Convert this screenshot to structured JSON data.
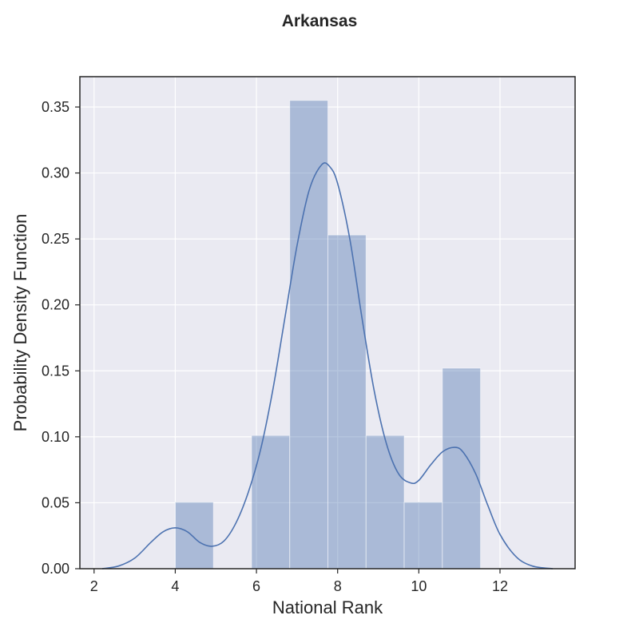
{
  "chart_data": {
    "type": "bar",
    "title": "Arkansas",
    "xlabel": "National Rank",
    "ylabel": "Probability Density Function",
    "xlim": [
      1.65,
      13.85
    ],
    "ylim": [
      0,
      0.373
    ],
    "xticks": [
      2,
      4,
      6,
      8,
      10,
      12
    ],
    "yticks": [
      0.0,
      0.05,
      0.1,
      0.15,
      0.2,
      0.25,
      0.3,
      0.35
    ],
    "ytick_labels": [
      "0.00",
      "0.05",
      "0.10",
      "0.15",
      "0.20",
      "0.25",
      "0.30",
      "0.35"
    ],
    "grid": true,
    "background": "#eaeaf2",
    "histogram": {
      "bins": [
        {
          "x0": 4.0,
          "x1": 4.94,
          "density": 0.0505
        },
        {
          "x0": 4.94,
          "x1": 5.88,
          "density": 0.0
        },
        {
          "x0": 5.88,
          "x1": 6.82,
          "density": 0.101
        },
        {
          "x0": 6.82,
          "x1": 7.76,
          "density": 0.355
        },
        {
          "x0": 7.76,
          "x1": 8.7,
          "density": 0.253
        },
        {
          "x0": 8.7,
          "x1": 9.64,
          "density": 0.101
        },
        {
          "x0": 9.64,
          "x1": 10.58,
          "density": 0.0505
        },
        {
          "x0": 10.58,
          "x1": 11.52,
          "density": 0.152
        }
      ],
      "color": "#4c72b0",
      "alpha": 0.4
    },
    "kde": {
      "color": "#4c72b0",
      "x": [
        2.2,
        2.6,
        3.0,
        3.4,
        3.7,
        4.0,
        4.3,
        4.6,
        4.9,
        5.2,
        5.5,
        5.8,
        6.1,
        6.4,
        6.7,
        7.0,
        7.3,
        7.6,
        7.8,
        8.0,
        8.3,
        8.6,
        8.9,
        9.2,
        9.5,
        9.8,
        10.0,
        10.3,
        10.6,
        10.9,
        11.1,
        11.4,
        11.7,
        12.0,
        12.4,
        12.8,
        13.3
      ],
      "y": [
        0.0,
        0.002,
        0.008,
        0.02,
        0.028,
        0.031,
        0.028,
        0.02,
        0.017,
        0.021,
        0.035,
        0.058,
        0.09,
        0.135,
        0.19,
        0.245,
        0.287,
        0.306,
        0.305,
        0.292,
        0.25,
        0.19,
        0.135,
        0.095,
        0.072,
        0.065,
        0.067,
        0.079,
        0.089,
        0.092,
        0.088,
        0.072,
        0.048,
        0.026,
        0.009,
        0.002,
        0.0
      ]
    }
  }
}
